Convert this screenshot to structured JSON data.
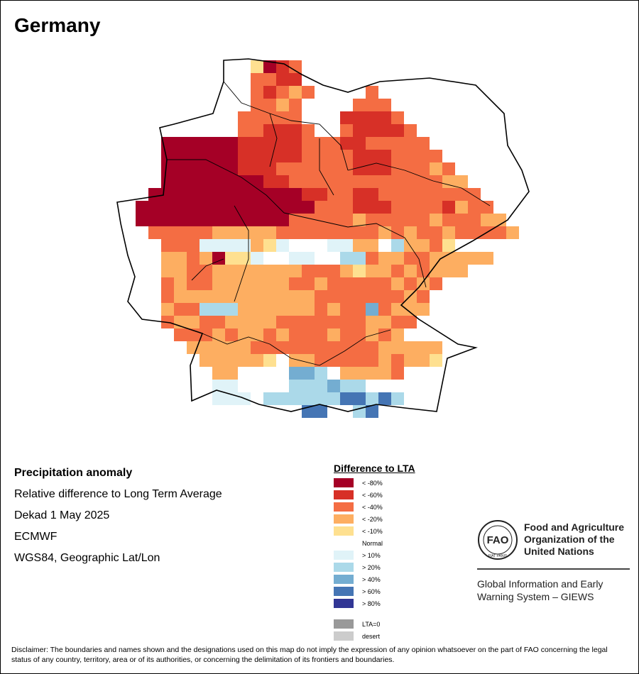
{
  "map": {
    "title": "Germany",
    "product": "Precipitation anomaly",
    "subtitle": "Relative difference to Long Term Average",
    "period": "Dekad 1 May 2025",
    "source": "ECMWF",
    "projection": "WGS84, Geographic Lat/Lon"
  },
  "legend": {
    "title": "Difference to LTA",
    "classes": [
      {
        "label": "< -80%",
        "color": "#a50026"
      },
      {
        "label": "< -60%",
        "color": "#d73027"
      },
      {
        "label": "< -40%",
        "color": "#f46d43"
      },
      {
        "label": "< -20%",
        "color": "#fdae61"
      },
      {
        "label": "< -10%",
        "color": "#fee090"
      },
      {
        "label": "Normal",
        "color": "#ffffff"
      },
      {
        "label": "> 10%",
        "color": "#e0f3f8"
      },
      {
        "label": "> 20%",
        "color": "#abd9e9"
      },
      {
        "label": "> 40%",
        "color": "#74add1"
      },
      {
        "label": "> 60%",
        "color": "#4575b4"
      },
      {
        "label": "> 80%",
        "color": "#313695"
      }
    ],
    "extra": [
      {
        "label": "LTA=0",
        "color": "#999999"
      },
      {
        "label": "desert",
        "color": "#cccccc"
      }
    ]
  },
  "organization": {
    "logo_text": "FAO",
    "logo_motto": "FIAT PANIS",
    "name_lines": [
      "Food and Agriculture",
      "Organization of the",
      "United Nations"
    ],
    "system_lines": [
      "Global Information and Early",
      "Warning System – GIEWS"
    ]
  },
  "disclaimer": "Disclaimer: The boundaries and names shown and the designations used on this map do not imply the expression of any opinion whatsoever on the part of FAO concerning the legal status of any country, territory, area or of its authorities, or concerning the delimitation of its frontiers and boundaries.",
  "grid": {
    "rows": [
      "...........4012.................",
      "...........2211.................",
      "...........21232....2...........",
      "...........2232....222..........",
      "..........22222...11112.........",
      "..........221112..211112........",
      "....000000111112221122222.......",
      "....0000001111122221112222......",
      "....00000011122222211122232.....",
      "....000000001122222222222233....",
      "...00000000000011221122222222...",
      "..0000000000000022211122221322..",
      "..00000000000022222322222322233.",
      "...22222333332222222232322322223",
      "....2226666346555663357332455...",
      "....33230446556655772332233333..",
      "....332233333332223433232333....",
      "....2322333333223222223232......",
      "....233333333333222222232.......",
      "....322777333333232282333.......",
      "....23322333322222223322........",
      ".....222323323222322323.........",
      "......33333222222222233333......",
      ".......3333345332222232334......",
      "........335555887533332.........",
      "........66555577787755..........",
      "........666577777799797.........",
      "...............99..79..........."
    ]
  }
}
